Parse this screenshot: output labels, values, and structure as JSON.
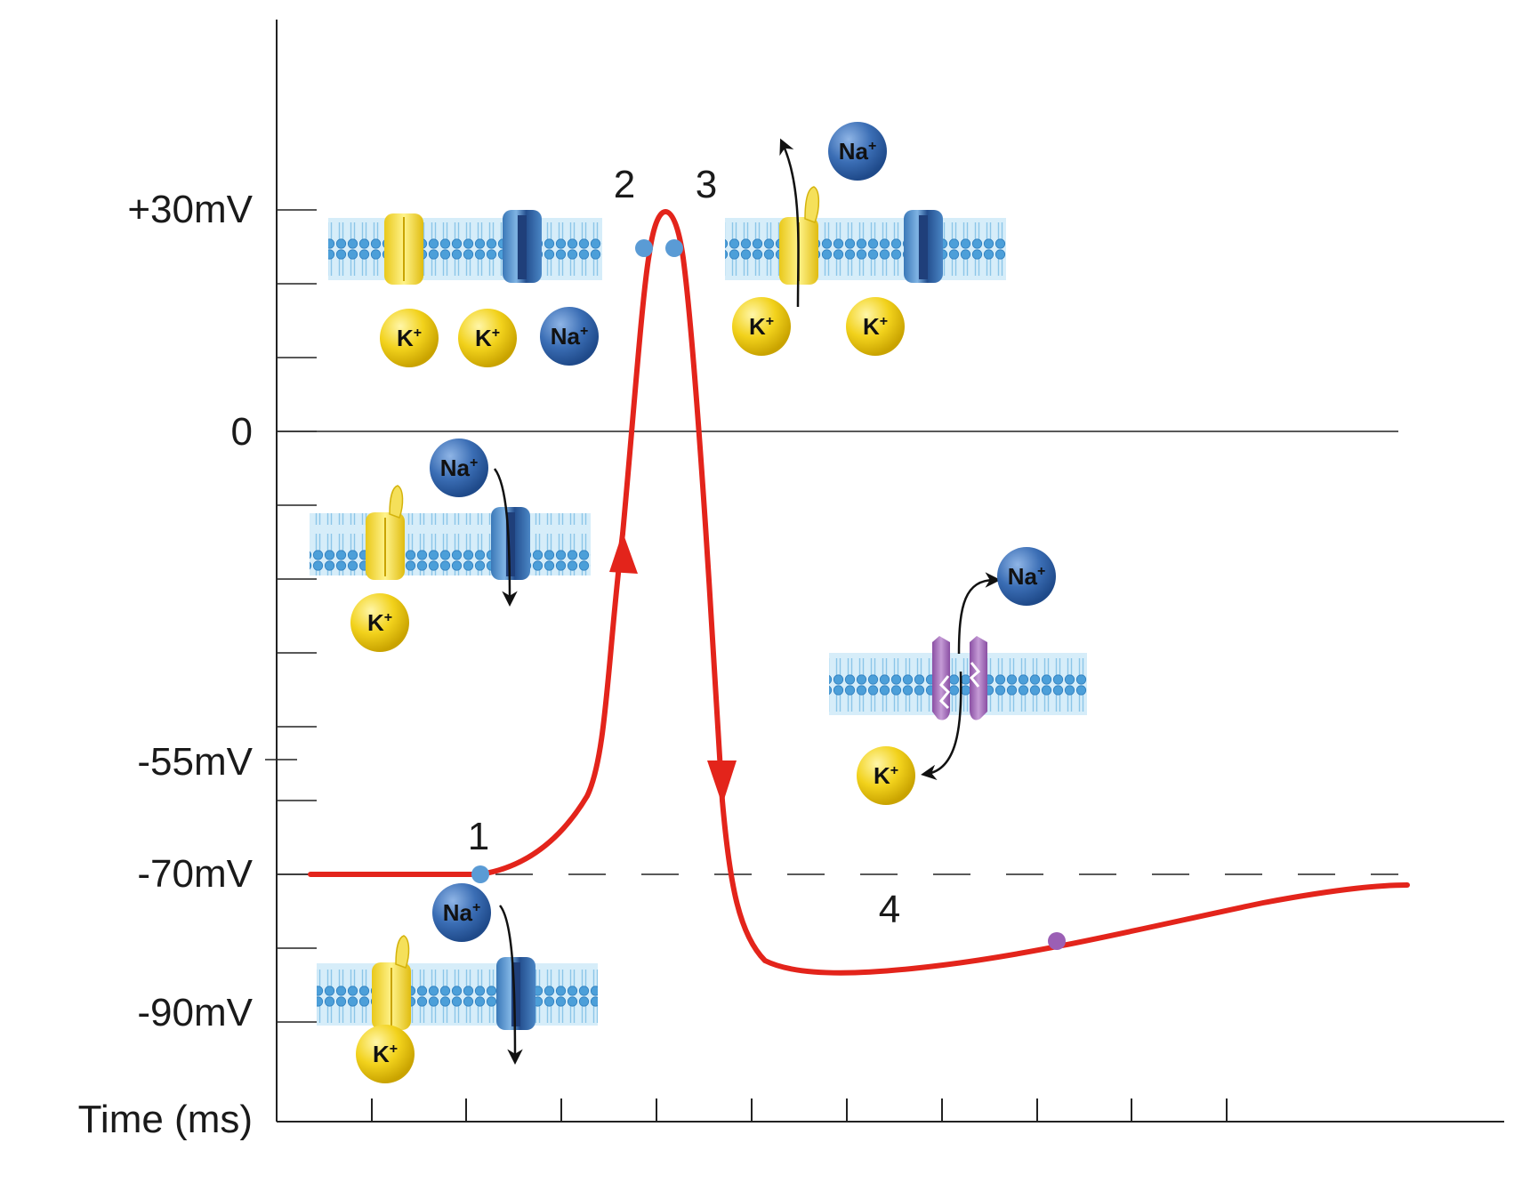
{
  "y_axis": {
    "ticks": [
      {
        "label": "+30mV",
        "value": 30
      },
      {
        "label": "0",
        "value": 0
      },
      {
        "label": "-55mV",
        "value": -55
      },
      {
        "label": "-70mV",
        "value": -70
      },
      {
        "label": "-90mV",
        "value": -90
      }
    ]
  },
  "x_axis": {
    "label": "Time (ms)"
  },
  "phases": [
    {
      "id": "phase-1",
      "label": "1"
    },
    {
      "id": "phase-2",
      "label": "2"
    },
    {
      "id": "phase-3",
      "label": "3"
    },
    {
      "id": "phase-4",
      "label": "4"
    }
  ],
  "ions": {
    "sodium": "Na",
    "potassium": "K",
    "charge": "+"
  },
  "colors": {
    "curve": "#e3241b",
    "sodium_ion": "#3b6eb5",
    "potassium_ion": "#f2d21c",
    "potassium_channel": "#f5e05a",
    "sodium_channel": "#4a86c5",
    "pump": "#9b63b0",
    "membrane": "#bfe2f5",
    "phospholipid_head": "#5aa7dc",
    "marker_blue": "#5a9bd5",
    "marker_purple": "#9b5fb5"
  }
}
